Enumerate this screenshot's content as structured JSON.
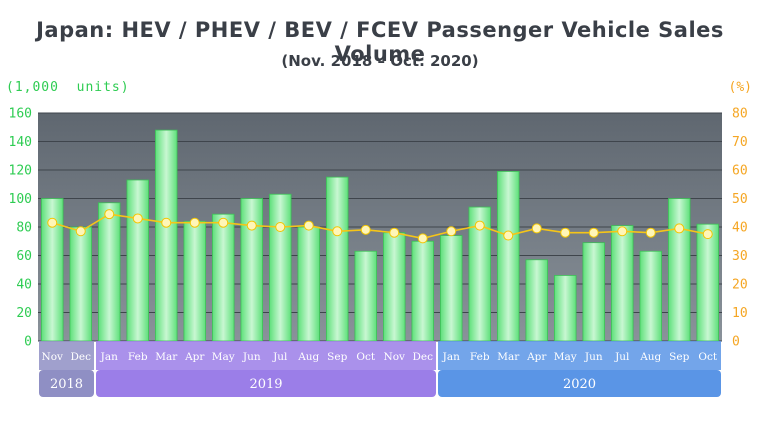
{
  "chart_data": {
    "type": "bar",
    "title": "Japan: HEV / PHEV / BEV / FCEV Passenger Vehicle Sales Volume",
    "subtitle": "(Nov. 2018 – Oct. 2020)",
    "ylabel_left": "(1,000  units)",
    "ylabel_right": "(%)",
    "categories": [
      "Nov",
      "Dec",
      "Jan",
      "Feb",
      "Mar",
      "Apr",
      "May",
      "Jun",
      "Jul",
      "Aug",
      "Sep",
      "Oct",
      "Nov",
      "Dec",
      "Jan",
      "Feb",
      "Mar",
      "Apr",
      "May",
      "Jun",
      "Jul",
      "Aug",
      "Sep",
      "Oct"
    ],
    "year_groups": [
      {
        "label": "2018",
        "start": 0,
        "end": 1,
        "color": "#8f8fc4"
      },
      {
        "label": "2019",
        "start": 2,
        "end": 13,
        "color": "#9b7ee8"
      },
      {
        "label": "2020",
        "start": 14,
        "end": 23,
        "color": "#5a95e6"
      }
    ],
    "series": [
      {
        "type": "bar",
        "axis": "left",
        "color": "#4cd964",
        "values": [
          100,
          80,
          97,
          113,
          148,
          84,
          89,
          100,
          103,
          80,
          115,
          63,
          76,
          70,
          74,
          94,
          119,
          57,
          46,
          69,
          81,
          63,
          100,
          82
        ]
      },
      {
        "type": "line",
        "axis": "right",
        "color": "#f5c518",
        "values": [
          41.5,
          38.5,
          44.5,
          43,
          41.5,
          41.5,
          41.5,
          40.5,
          40,
          40.5,
          38.5,
          39,
          38,
          36,
          38.5,
          40.5,
          37,
          39.5,
          38,
          38,
          38.5,
          38,
          39.5,
          37.5
        ]
      }
    ],
    "ylim_left": [
      0,
      160
    ],
    "yticks_left": [
      0,
      20,
      40,
      60,
      80,
      100,
      120,
      140,
      160
    ],
    "ylim_right": [
      0,
      80
    ],
    "yticks_right": [
      0,
      10,
      20,
      30,
      40,
      50,
      60,
      70,
      80
    ],
    "grid": true
  }
}
